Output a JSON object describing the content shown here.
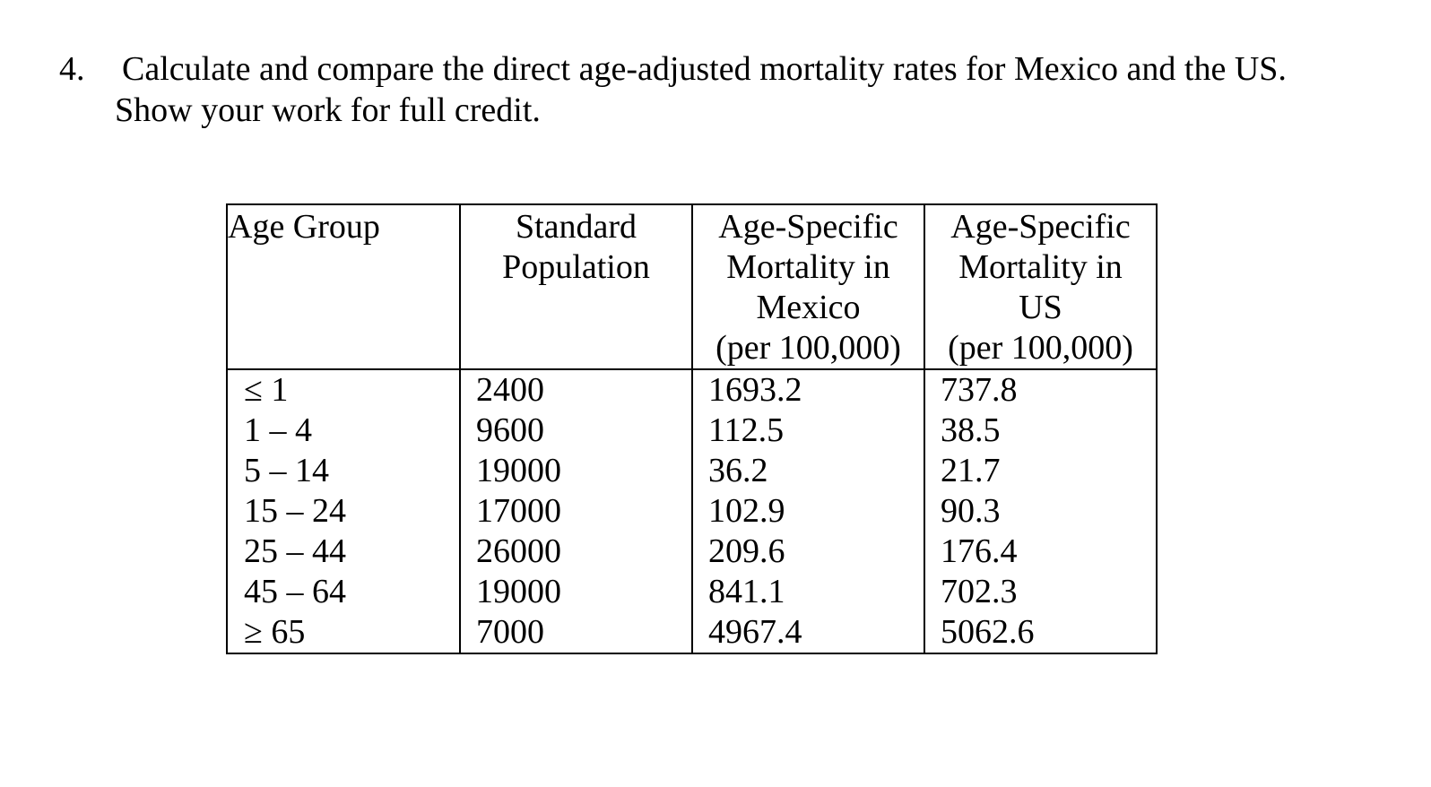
{
  "question": {
    "number": "4.",
    "line1": "Calculate and compare the direct age-adjusted mortality rates for Mexico and the US.",
    "line2": "Show your work for full credit."
  },
  "table": {
    "headers": {
      "age_group": "Age Group",
      "standard_population": [
        "Standard",
        "Population"
      ],
      "mexico": [
        "Age-Specific",
        "Mortality in",
        "Mexico",
        "(per 100,000)"
      ],
      "us": [
        "Age-Specific",
        "Mortality in",
        "US",
        "(per 100,000)"
      ]
    },
    "rows": [
      {
        "age": "≤ 1",
        "standard": "2400",
        "mexico": "1693.2",
        "us": "737.8"
      },
      {
        "age": "1 – 4",
        "standard": "9600",
        "mexico": "112.5",
        "us": "38.5"
      },
      {
        "age": "5 – 14",
        "standard": "19000",
        "mexico": "36.2",
        "us": "21.7"
      },
      {
        "age": "15 – 24",
        "standard": "17000",
        "mexico": "102.9",
        "us": "90.3"
      },
      {
        "age": "25 – 44",
        "standard": "26000",
        "mexico": "209.6",
        "us": "176.4"
      },
      {
        "age": "45 – 64",
        "standard": "19000",
        "mexico": "841.1",
        "us": "702.3"
      },
      {
        "age": "≥ 65",
        "standard": "7000",
        "mexico": "4967.4",
        "us": "5062.6"
      }
    ]
  }
}
